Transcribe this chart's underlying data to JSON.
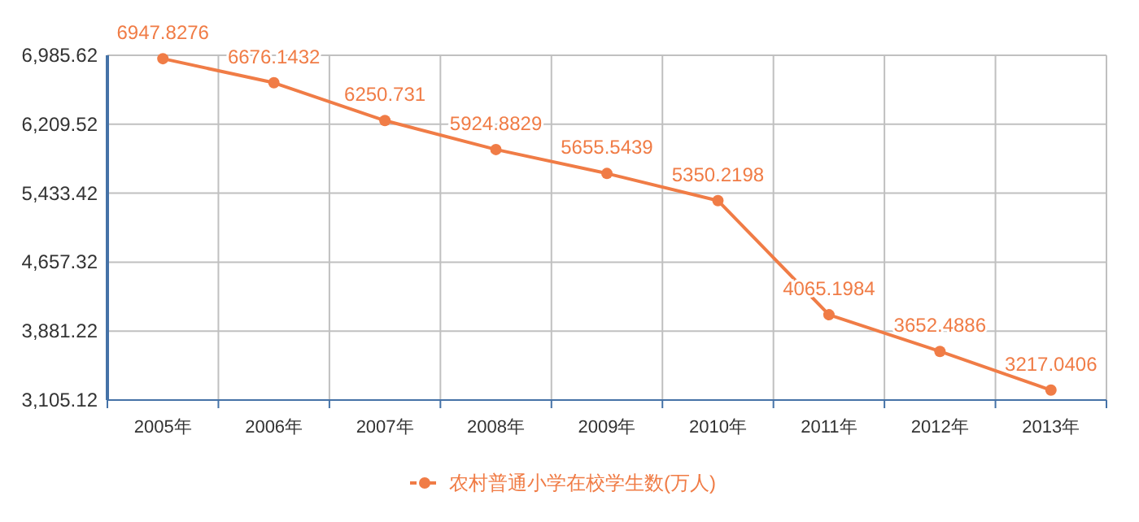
{
  "chart_data": {
    "type": "line",
    "categories": [
      "2005年",
      "2006年",
      "2007年",
      "2008年",
      "2009年",
      "2010年",
      "2011年",
      "2012年",
      "2013年"
    ],
    "series": [
      {
        "name": "农村普通小学在校学生数(万人)",
        "color": "#f07c46",
        "values": [
          6947.8276,
          6676.1432,
          6250.731,
          5924.8829,
          5655.5439,
          5350.2198,
          4065.1984,
          3652.4886,
          3217.0406
        ]
      }
    ],
    "ylim": [
      3105.12,
      6985.62
    ],
    "yticks": [
      {
        "value": 3105.12,
        "label": "3,105.12"
      },
      {
        "value": 3881.22,
        "label": "3,881.22"
      },
      {
        "value": 4657.32,
        "label": "4,657.32"
      },
      {
        "value": 5433.42,
        "label": "5,433.42"
      },
      {
        "value": 6209.52,
        "label": "6,209.52"
      },
      {
        "value": 6985.62,
        "label": "6,985.62"
      }
    ],
    "data_labels": true,
    "grid": true,
    "legend": "bottom",
    "marker": "circle",
    "line_style": "solid"
  }
}
